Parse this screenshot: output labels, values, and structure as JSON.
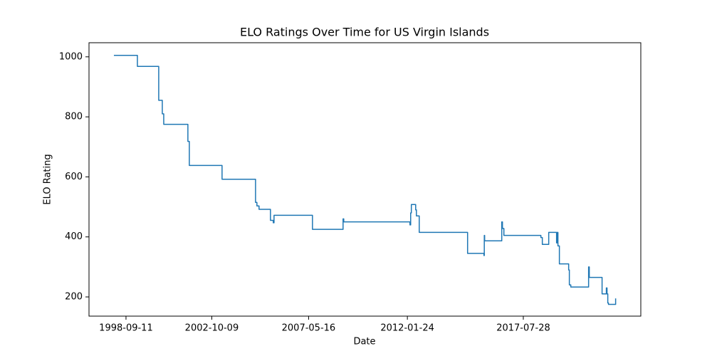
{
  "chart_data": {
    "type": "line",
    "step": "post",
    "title": "ELO Ratings Over Time for US Virgin Islands",
    "x_label": "Date",
    "y_label": "ELO Rating",
    "color": "#1f77b4",
    "x": [
      "1998-02-13",
      "1999-03-28",
      "2000-04-01",
      "2000-06-02",
      "2000-06-27",
      "2001-08-20",
      "2001-09-14",
      "2003-04-05",
      "2004-11-06",
      "2004-11-30",
      "2005-01-06",
      "2005-07-23",
      "2005-09-10",
      "2005-09-23",
      "2007-07-22",
      "2009-01-03",
      "2009-01-15",
      "2012-03-09",
      "2012-03-21",
      "2012-04-02",
      "2012-06-16",
      "2012-06-29",
      "2012-08-17",
      "2014-12-04",
      "2015-09-14",
      "2015-09-20",
      "2015-09-26",
      "2016-07-19",
      "2016-07-31",
      "2016-08-25",
      "2018-05-29",
      "2018-06-23",
      "2018-10-12",
      "2019-02-25",
      "2019-03-09",
      "2019-03-21",
      "2019-04-15",
      "2019-09-23",
      "2019-10-05",
      "2019-10-30",
      "2020-09-03",
      "2020-09-15",
      "2021-04-25",
      "2021-07-08",
      "2021-07-20",
      "2021-08-02",
      "2021-08-14",
      "2021-12-16"
    ],
    "values": [
      1005,
      968,
      855,
      810,
      775,
      718,
      638,
      592,
      515,
      503,
      492,
      455,
      447,
      472,
      425,
      460,
      450,
      440,
      480,
      508,
      490,
      470,
      415,
      345,
      338,
      405,
      387,
      450,
      428,
      405,
      398,
      375,
      415,
      380,
      415,
      370,
      310,
      290,
      240,
      233,
      300,
      265,
      210,
      230,
      210,
      180,
      175,
      195
    ],
    "xlim": [
      "1996-12-08",
      "2023-02-26"
    ],
    "xticks": [
      "1998-09-11",
      "2002-10-09",
      "2007-05-16",
      "2012-01-24",
      "2017-07-28"
    ],
    "ylim": [
      136,
      1047
    ],
    "yticks": [
      200,
      400,
      600,
      800,
      1000
    ],
    "grid": false
  }
}
